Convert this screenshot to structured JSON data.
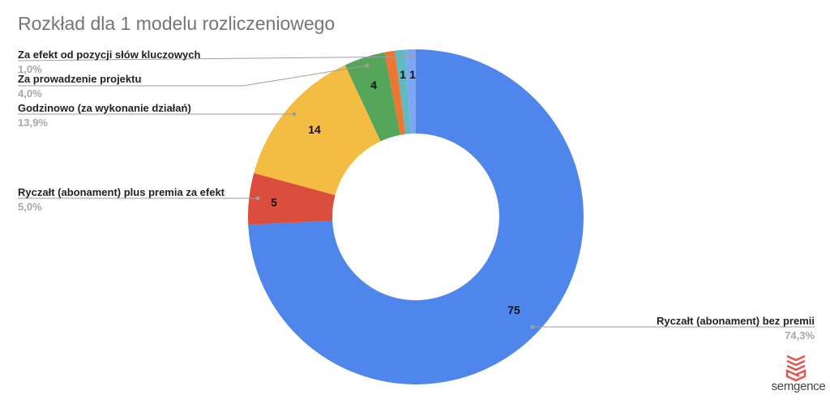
{
  "title": "Rozkład dla 1 modelu rozliczeniowego",
  "brand": {
    "name": "semgence",
    "color": "#E8514A"
  },
  "chart_data": {
    "type": "pie",
    "variant": "donut",
    "title": "Rozkład dla 1 modelu rozliczeniowego",
    "start_angle": "12 o'clock, clockwise",
    "slices": [
      {
        "label": "Ryczałt (abonament) bez premii",
        "value": 75,
        "percent": "74,3%",
        "color": "#4F86EC",
        "inner_label": "75"
      },
      {
        "label": "Ryczałt (abonament) plus premia za efekt",
        "value": 5,
        "percent": "5,0%",
        "color": "#DB4E3E",
        "inner_label": "5"
      },
      {
        "label": "Godzinowo (za wykonanie działań)",
        "value": 14,
        "percent": "13,9%",
        "color": "#F4BC42",
        "inner_label": "14"
      },
      {
        "label": "Za prowadzenie projektu",
        "value": 4,
        "percent": "4,0%",
        "color": "#55A55A",
        "inner_label": "4"
      },
      {
        "label": "",
        "value": 1,
        "percent": "",
        "color": "#EE7630",
        "inner_label": ""
      },
      {
        "label": "",
        "value": 1,
        "percent": "",
        "color": "#5FBAC2",
        "inner_label": "1"
      },
      {
        "label": "Za efekt od pozycji słów kluczowych",
        "value": 1,
        "percent": "1,0%",
        "color": "#7EA6F4",
        "inner_label": "1"
      }
    ],
    "legend_position": "labels with leader lines",
    "grid": false
  },
  "labels": {
    "l0": {
      "name": "Ryczałt (abonament) bez premii",
      "pct": "74,3%"
    },
    "l1": {
      "name": "Ryczałt (abonament) plus premia za efekt",
      "pct": "5,0%"
    },
    "l2": {
      "name": "Godzinowo (za wykonanie działań)",
      "pct": "13,9%"
    },
    "l3": {
      "name": "Za prowadzenie projektu",
      "pct": "4,0%"
    },
    "l6": {
      "name": "Za efekt od pozycji słów kluczowych",
      "pct": "1,0%"
    }
  }
}
